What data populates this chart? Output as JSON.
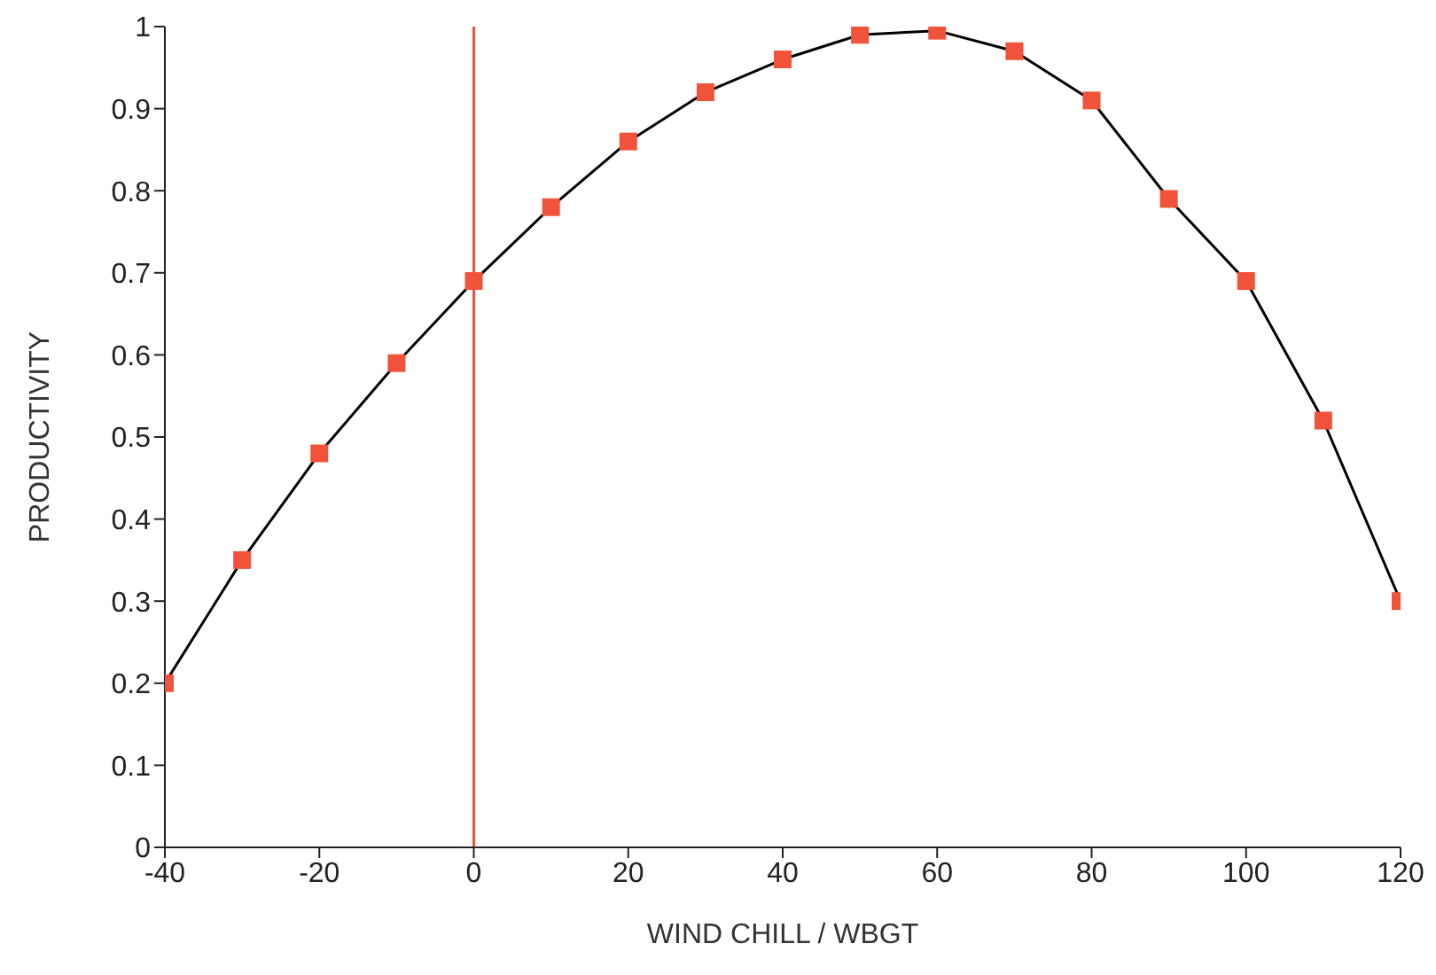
{
  "chart_data": {
    "type": "line",
    "xlabel": "WIND CHILL / WBGT",
    "ylabel": "PRODUCTIVITY",
    "x": [
      -40,
      -30,
      -20,
      -10,
      0,
      10,
      20,
      30,
      40,
      50,
      60,
      70,
      80,
      90,
      100,
      110,
      120
    ],
    "series": [
      {
        "color": "#000000",
        "colors": [
          "#f0533a",
          "#f0533a",
          "#f0533a",
          "#f0533a",
          "#f0533a",
          "#f0533a",
          "#f0533a",
          "#f0533a",
          "#f0533a",
          "#f0533a",
          "#f0533a",
          "#f0533a",
          "#f0533a",
          "#f0533a",
          "#f0533a",
          "#f0533a",
          "#f0533a"
        ],
        "values": [
          0.2,
          0.35,
          0.48,
          0.59,
          0.69,
          0.78,
          0.86,
          0.92,
          0.96,
          0.99,
          0.995,
          0.97,
          0.91,
          0.79,
          0.69,
          0.52,
          0.3
        ]
      }
    ],
    "xlim": [
      -40,
      120
    ],
    "xticks": [
      -40,
      -20,
      0,
      20,
      40,
      60,
      80,
      100,
      120
    ],
    "ylim": [
      0,
      1
    ],
    "yticks": [
      0,
      0.1,
      0.2,
      0.3,
      0.4,
      0.5,
      0.6,
      0.7,
      0.8,
      0.9,
      1
    ],
    "ref_lines": [
      {
        "axis": "x",
        "value": 0,
        "color": "#f0533a"
      }
    ],
    "grid": false,
    "legend": false,
    "marker": "square",
    "line_style": "solid"
  }
}
